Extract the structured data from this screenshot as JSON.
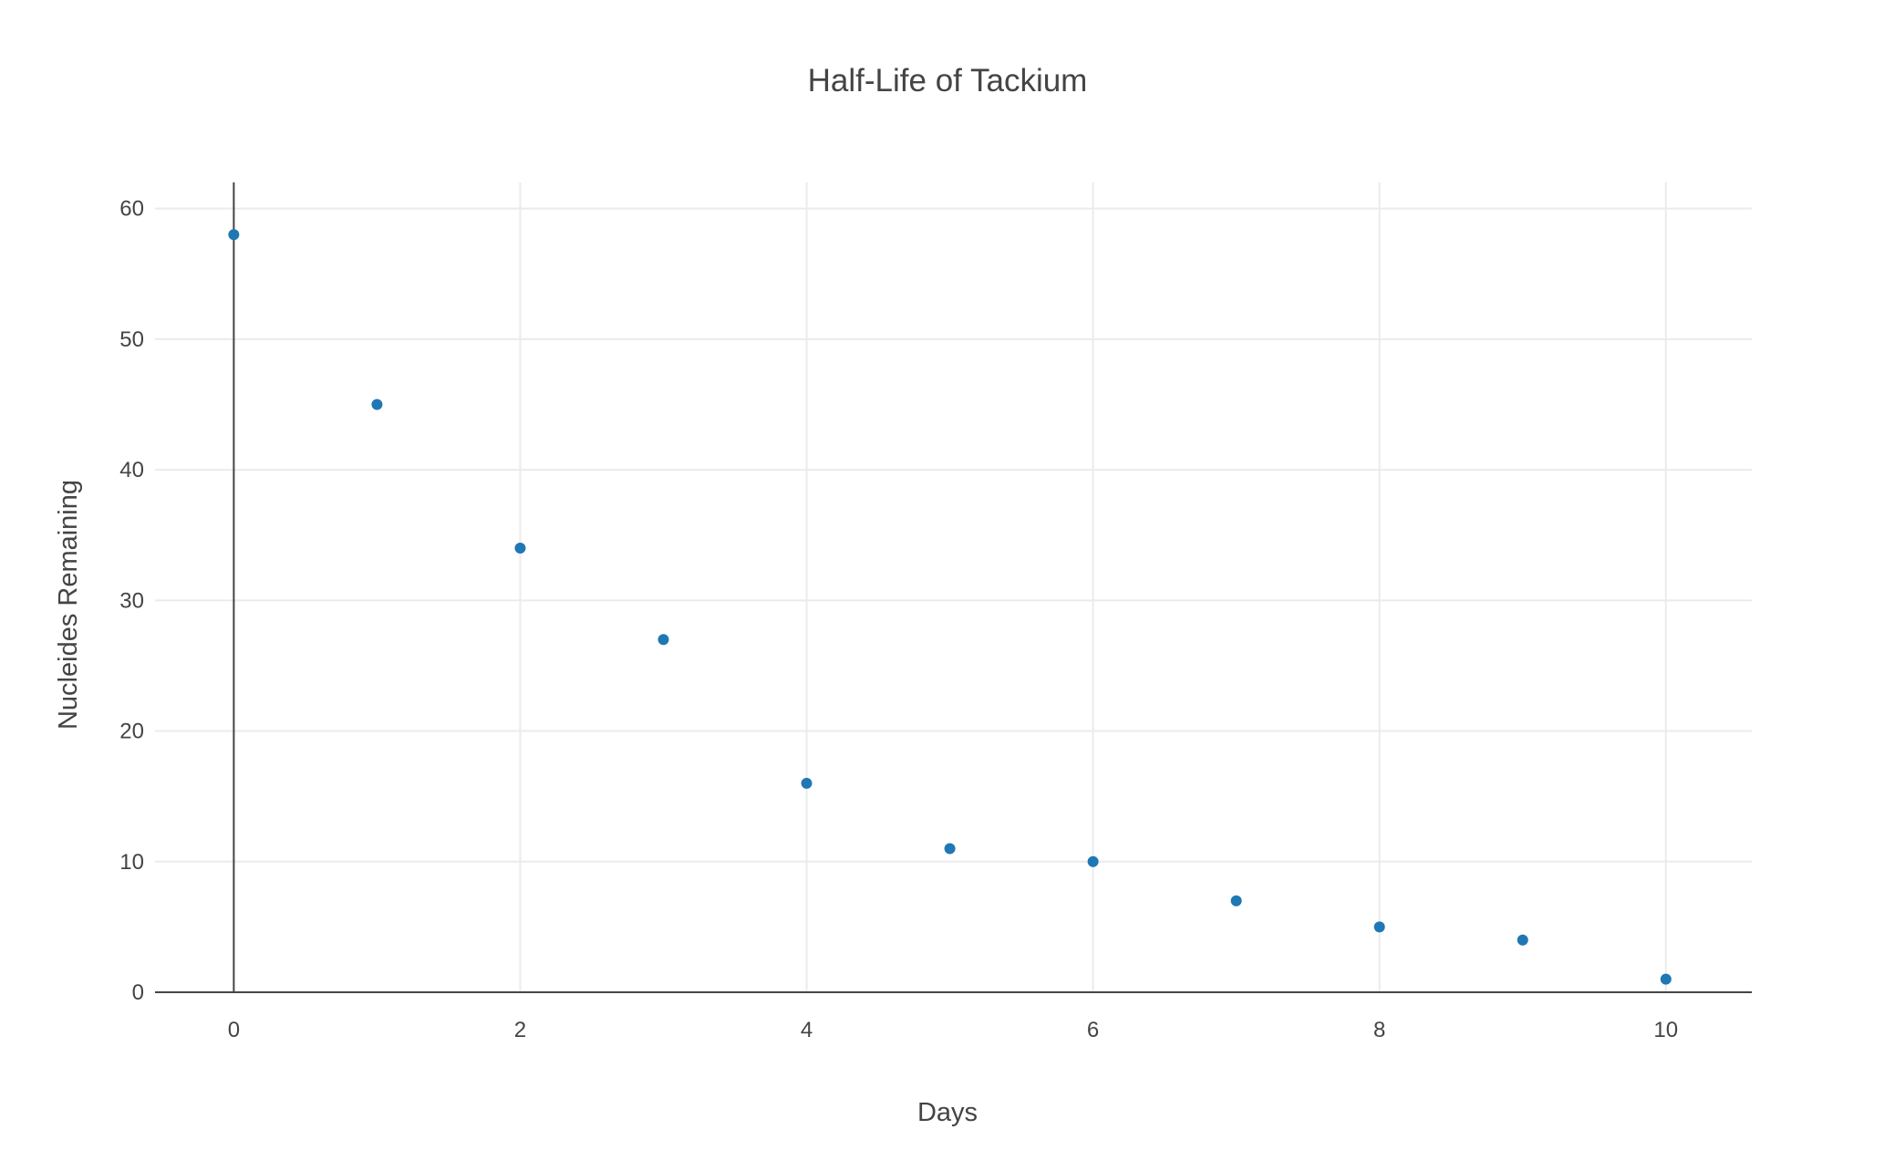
{
  "chart_data": {
    "type": "scatter",
    "title": "Half-Life of Tackium",
    "xlabel": "Days",
    "ylabel": "Nucleides Remaining",
    "x": [
      0,
      1,
      2,
      3,
      4,
      5,
      6,
      7,
      8,
      9,
      10
    ],
    "y": [
      58,
      45,
      34,
      27,
      16,
      11,
      10,
      7,
      5,
      4,
      1
    ],
    "xlim": [
      -0.55,
      10.6
    ],
    "ylim": [
      0,
      62
    ],
    "xticks": [
      0,
      2,
      4,
      6,
      8,
      10
    ],
    "yticks": [
      0,
      10,
      20,
      30,
      40,
      50,
      60
    ],
    "grid": true,
    "legend": "none",
    "marker_color": "#1f77b4"
  }
}
